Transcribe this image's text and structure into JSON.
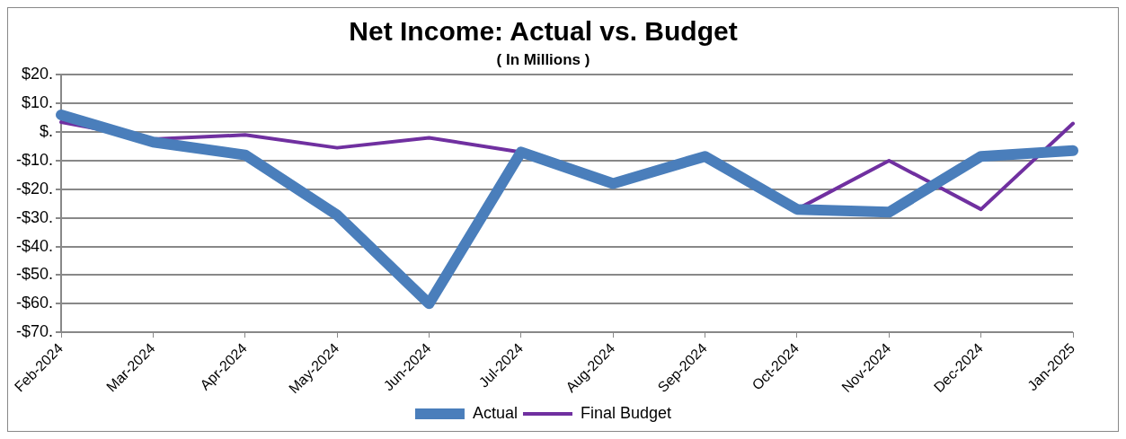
{
  "chart_data": {
    "type": "line",
    "title": "Net Income: Actual vs. Budget",
    "subtitle": "( In Millions )",
    "categories": [
      "Feb-2024",
      "Mar-2024",
      "Apr-2024",
      "May-2024",
      "Jun-2024",
      "Jul-2024",
      "Aug-2024",
      "Sep-2024",
      "Oct-2024",
      "Nov-2024",
      "Dec-2024",
      "Jan-2025"
    ],
    "series": [
      {
        "name": "Actual",
        "color": "#4a7ebb",
        "values": [
          6,
          -3.5,
          -8,
          -29,
          -60,
          -7,
          -18,
          -8.5,
          -27,
          -28,
          -8.5,
          -6.5
        ]
      },
      {
        "name": "Final Budget",
        "color": "#7030a0",
        "values": [
          3.5,
          -2.5,
          -1,
          -5.5,
          -2,
          -7,
          -18,
          -9,
          -27,
          -10,
          -27,
          3
        ]
      }
    ],
    "ylim": [
      -70,
      20
    ],
    "yticks": [
      {
        "value": -70,
        "label": "-$70."
      },
      {
        "value": -60,
        "label": "-$60."
      },
      {
        "value": -50,
        "label": "-$50."
      },
      {
        "value": -40,
        "label": "-$40."
      },
      {
        "value": -30,
        "label": "-$30."
      },
      {
        "value": -20,
        "label": "-$20."
      },
      {
        "value": -10,
        "label": "-$10."
      },
      {
        "value": 0,
        "label": "$."
      },
      {
        "value": 10,
        "label": "$10."
      },
      {
        "value": 20,
        "label": "$20."
      }
    ],
    "grid": "y",
    "legend": "bottom",
    "marker": "none",
    "line_style": "solid"
  }
}
